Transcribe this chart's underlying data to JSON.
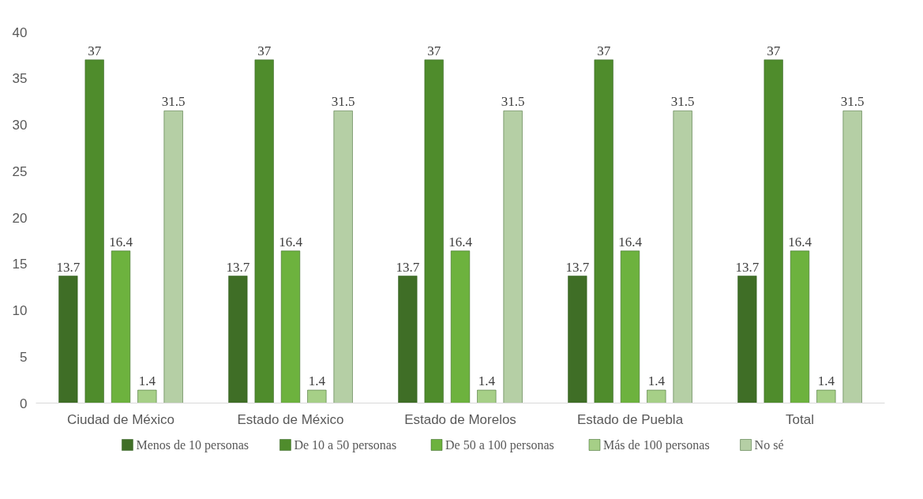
{
  "chart_data": {
    "type": "bar",
    "categories": [
      "Ciudad de México",
      "Estado de México",
      "Estado de Morelos",
      "Estado de Puebla",
      "Total"
    ],
    "series": [
      {
        "name": "Menos de 10 personas",
        "color": "#3f6e26",
        "values": [
          13.7,
          13.7,
          13.7,
          13.7,
          13.7
        ]
      },
      {
        "name": "De 10 a 50 personas",
        "color": "#4f8c2c",
        "values": [
          37,
          37,
          37,
          37,
          37
        ]
      },
      {
        "name": "De 50 a 100 personas",
        "color": "#6db23e",
        "values": [
          16.4,
          16.4,
          16.4,
          16.4,
          16.4
        ]
      },
      {
        "name": "Más de 100 personas",
        "color": "#a6cf87",
        "values": [
          1.4,
          1.4,
          1.4,
          1.4,
          1.4
        ]
      },
      {
        "name": "No sé",
        "color": "#b5cfa5",
        "values": [
          31.5,
          31.5,
          31.5,
          31.5,
          31.5
        ]
      }
    ],
    "ylim": [
      0,
      40
    ],
    "yticks": [
      0,
      5,
      10,
      15,
      20,
      25,
      30,
      35,
      40
    ],
    "grid": false,
    "legend": "bottom",
    "data_labels": true
  }
}
